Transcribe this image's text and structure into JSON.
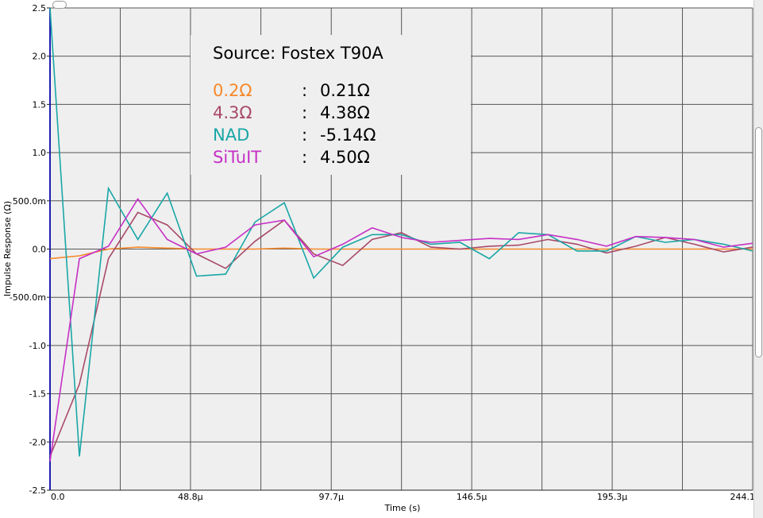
{
  "chart_data": {
    "type": "line",
    "xlabel": "Time (s)",
    "ylabel": "Impulse Response (Ω)",
    "xlim": [
      0,
      244.1
    ],
    "ylim": [
      -2.5,
      2.5
    ],
    "x_ticks": [
      0,
      48.8,
      97.7,
      146.5,
      195.3,
      244.1
    ],
    "x_tick_labels": [
      "0.0",
      "48.8μ",
      "97.7μ",
      "146.5μ",
      "195.3μ",
      "244.1μ"
    ],
    "y_ticks": [
      2.5,
      2.0,
      1.5,
      1.0,
      0.5,
      0.0,
      -0.5,
      -1.0,
      -1.5,
      -2.0,
      -2.5
    ],
    "y_tick_labels": [
      "2.5",
      "2.0",
      "1.5",
      "1.0",
      "500.0m",
      "0.0",
      "-500.0m",
      "-1.0",
      "-1.5",
      "-2.0",
      "-2.5"
    ],
    "grid": true,
    "legend_title": "Source: Fostex T90A",
    "legend_position": "top-left",
    "series": [
      {
        "name": "0.2Ω",
        "value_label": "0.21Ω",
        "color": "#f7892a",
        "x": [
          0,
          10.2,
          20.3,
          30.5,
          40.7,
          50.9,
          61.0,
          71.2,
          81.4,
          91.6,
          101.7,
          111.9,
          122.1,
          132.3,
          142.4,
          152.6,
          162.8,
          173.0,
          183.1,
          193.3,
          203.5,
          213.7,
          223.8,
          234.0,
          244.1
        ],
        "y": [
          -0.1,
          -0.07,
          0.0,
          0.02,
          0.01,
          0.0,
          0.0,
          0.0,
          0.01,
          0.0,
          0.0,
          0.0,
          0.0,
          0.0,
          0.0,
          0.0,
          0.0,
          0.0,
          0.0,
          0.0,
          0.0,
          0.0,
          0.0,
          0.0,
          0.0
        ]
      },
      {
        "name": "4.3Ω",
        "value_label": "4.38Ω",
        "color": "#a84a68",
        "x": [
          0,
          10.2,
          20.3,
          30.5,
          40.7,
          50.9,
          61.0,
          71.2,
          81.4,
          91.6,
          101.7,
          111.9,
          122.1,
          132.3,
          142.4,
          152.6,
          162.8,
          173.0,
          183.1,
          193.3,
          203.5,
          213.7,
          223.8,
          234.0,
          244.1
        ],
        "y": [
          -2.15,
          -1.4,
          -0.1,
          0.38,
          0.25,
          -0.05,
          -0.2,
          0.08,
          0.3,
          -0.05,
          -0.17,
          0.1,
          0.17,
          0.02,
          0.0,
          0.03,
          0.04,
          0.1,
          0.05,
          -0.04,
          0.03,
          0.12,
          0.05,
          -0.03,
          0.02
        ]
      },
      {
        "name": "NAD",
        "value_label": "-5.14Ω",
        "color": "#1aa6a6",
        "x": [
          0,
          10.2,
          20.3,
          30.5,
          40.7,
          50.9,
          61.0,
          71.2,
          81.4,
          91.6,
          101.7,
          111.9,
          122.1,
          132.3,
          142.4,
          152.6,
          162.8,
          173.0,
          183.1,
          193.3,
          203.5,
          213.7,
          223.8,
          234.0,
          244.1
        ],
        "y": [
          2.5,
          -2.15,
          0.63,
          0.1,
          0.58,
          -0.28,
          -0.26,
          0.28,
          0.48,
          -0.3,
          0.02,
          0.15,
          0.15,
          0.05,
          0.07,
          -0.1,
          0.17,
          0.15,
          -0.02,
          -0.02,
          0.13,
          0.07,
          0.1,
          0.05,
          -0.02
        ]
      },
      {
        "name": "SiTuIT",
        "value_label": "4.50Ω",
        "color": "#c630c6",
        "x": [
          0,
          10.2,
          20.3,
          30.5,
          40.7,
          50.9,
          61.0,
          71.2,
          81.4,
          91.6,
          101.7,
          111.9,
          122.1,
          132.3,
          142.4,
          152.6,
          162.8,
          173.0,
          183.1,
          193.3,
          203.5,
          213.7,
          223.8,
          234.0,
          244.1
        ],
        "y": [
          -2.2,
          -0.1,
          0.03,
          0.52,
          0.1,
          -0.05,
          0.02,
          0.25,
          0.3,
          -0.08,
          0.05,
          0.22,
          0.12,
          0.07,
          0.09,
          0.11,
          0.1,
          0.15,
          0.1,
          0.03,
          0.13,
          0.12,
          0.1,
          0.02,
          0.06
        ]
      }
    ]
  }
}
